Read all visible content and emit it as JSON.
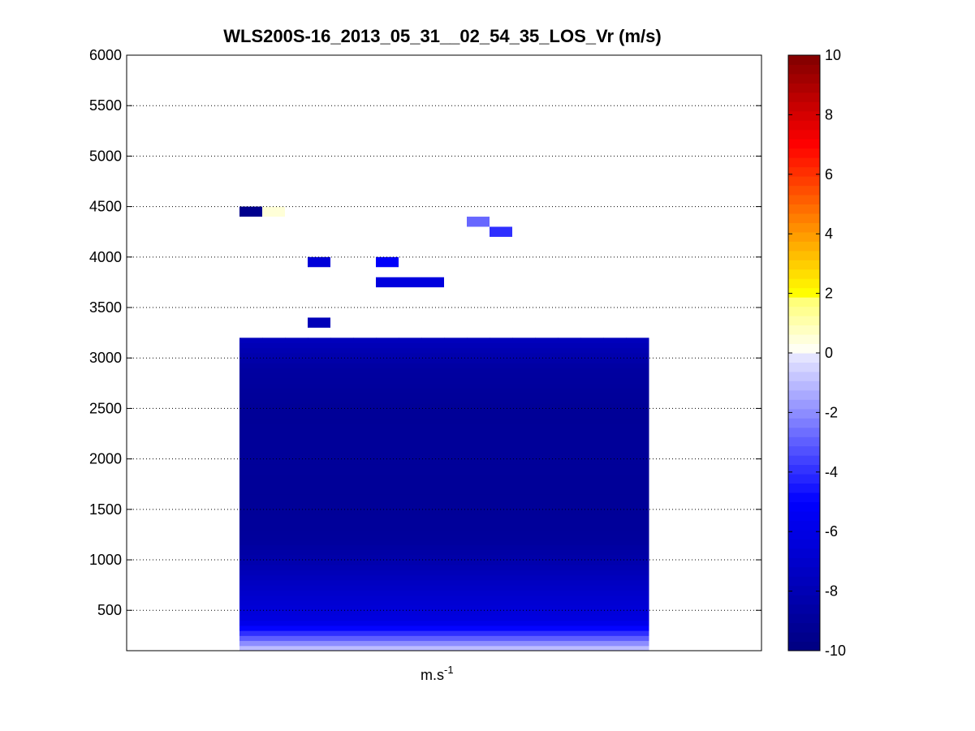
{
  "chart_data": {
    "type": "heatmap",
    "title": "WLS200S-16_2013_05_31__02_54_35_LOS_Vr (m/s)",
    "xlabel": "m.s",
    "xlabel_superscript": "-1",
    "ylabel": "",
    "ylim": [
      100,
      6000
    ],
    "yticks": [
      500,
      1000,
      1500,
      2000,
      2500,
      3000,
      3500,
      4000,
      4500,
      5000,
      5500,
      6000
    ],
    "grid": true,
    "colormap": "blue-white-yellow-red",
    "colorbar": {
      "clim": [
        -10,
        10
      ],
      "ticks": [
        -10,
        -8,
        -6,
        -4,
        -2,
        0,
        2,
        4,
        6,
        8,
        10
      ]
    },
    "columns": 18,
    "main_block": {
      "height_range": [
        100,
        3200
      ],
      "column_range": [
        0,
        18
      ],
      "profile": [
        {
          "height": 100,
          "value": -0.5
        },
        {
          "height": 200,
          "value": -2.5
        },
        {
          "height": 300,
          "value": -4.5
        },
        {
          "height": 400,
          "value": -6.2
        },
        {
          "height": 600,
          "value": -6.8
        },
        {
          "height": 800,
          "value": -7.5
        },
        {
          "height": 1000,
          "value": -8.3
        },
        {
          "height": 1200,
          "value": -8.9
        },
        {
          "height": 1600,
          "value": -9.1
        },
        {
          "height": 2000,
          "value": -9.0
        },
        {
          "height": 2500,
          "value": -9.1
        },
        {
          "height": 2900,
          "value": -8.7
        },
        {
          "height": 3100,
          "value": -8.0
        },
        {
          "height": 3200,
          "value": -7.5
        }
      ]
    },
    "isolated_cells": [
      {
        "col_start": 0,
        "col_end": 1,
        "height": 4450,
        "value": -9.5
      },
      {
        "col_start": 1,
        "col_end": 2,
        "height": 4450,
        "value": 0.5
      },
      {
        "col_start": 3,
        "col_end": 4,
        "height": 3950,
        "value": -6.5
      },
      {
        "col_start": 6,
        "col_end": 7,
        "height": 3950,
        "value": -5.2
      },
      {
        "col_start": 6,
        "col_end": 9,
        "height": 3750,
        "value": -6.3
      },
      {
        "col_start": 3,
        "col_end": 4,
        "height": 3350,
        "value": -7.8
      },
      {
        "col_start": 10,
        "col_end": 11,
        "height": 4350,
        "value": -2.8
      },
      {
        "col_start": 11,
        "col_end": 12,
        "height": 4250,
        "value": -4.0
      }
    ]
  }
}
